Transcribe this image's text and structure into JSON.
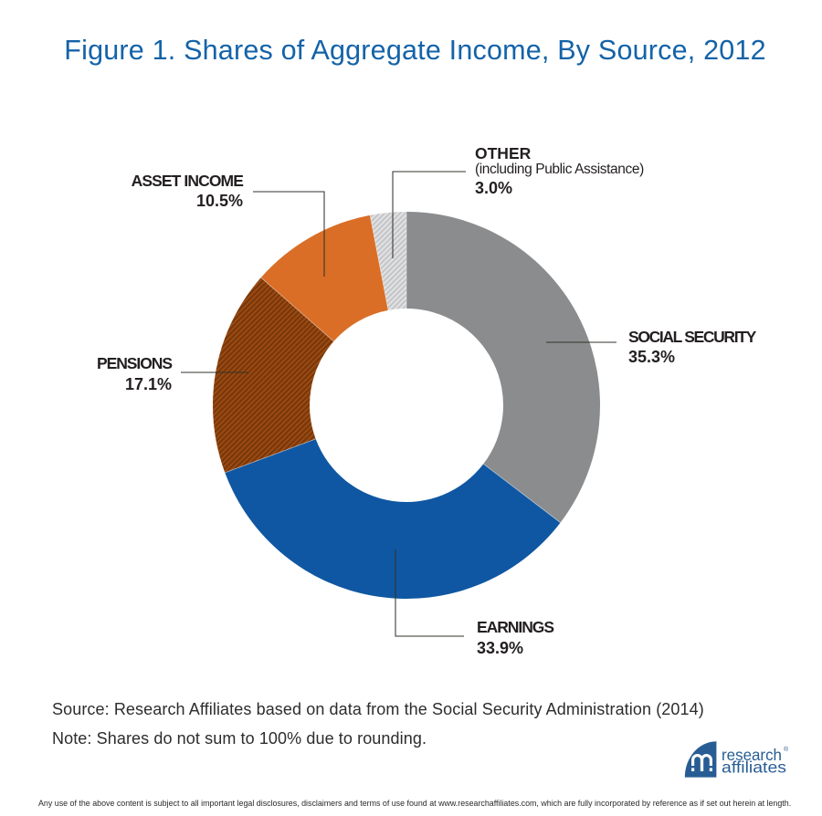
{
  "title": "Figure 1. Shares of Aggregate Income, By Source, 2012",
  "chart_data": {
    "type": "pie",
    "donut": true,
    "title": "Figure 1. Shares of Aggregate Income, By Source, 2012",
    "start_angle_deg": 0,
    "clockwise": true,
    "legend_position": "callout-labels",
    "segments": [
      {
        "label": "SOCIAL SECURITY",
        "value": 35.3,
        "value_label": "35.3%",
        "color": "#8B8C8E",
        "hatch_stripe": null
      },
      {
        "label": "EARNINGS",
        "value": 33.9,
        "value_label": "33.9%",
        "color": "#0F57A2",
        "hatch_stripe": null
      },
      {
        "label": "PENSIONS",
        "value": 17.1,
        "value_label": "17.1%",
        "color": "#9C4A13",
        "hatch_stripe": "#763709"
      },
      {
        "label": "ASSET INCOME",
        "value": 10.5,
        "value_label": "10.5%",
        "color": "#DA6E27",
        "hatch_stripe": null
      },
      {
        "label": "OTHER",
        "sublabel": "(including Public Assistance)",
        "value": 3.0,
        "value_label": "3.0%",
        "color": "#C4C5C7",
        "hatch_stripe": "#E2E2E4"
      }
    ]
  },
  "notes": {
    "source": "Source: Research Affiliates based on data from the Social Security Administration (2014)",
    "note": "Note: Shares do not sum to 100% due to rounding."
  },
  "footer": {
    "legal": "Any use of the above content is subject to all important legal disclosures, disclaimers and terms of use found at www.researchaffiliates.com, which are fully incorporated by reference as if set out herein at length."
  },
  "logo": {
    "line1": "research",
    "line2": "affiliates",
    "registered": "®"
  },
  "colors": {
    "title_blue": "#1463A8",
    "label_text": "#231F20",
    "leader_line": "#3B3830",
    "logo_blue": "#275D94"
  }
}
